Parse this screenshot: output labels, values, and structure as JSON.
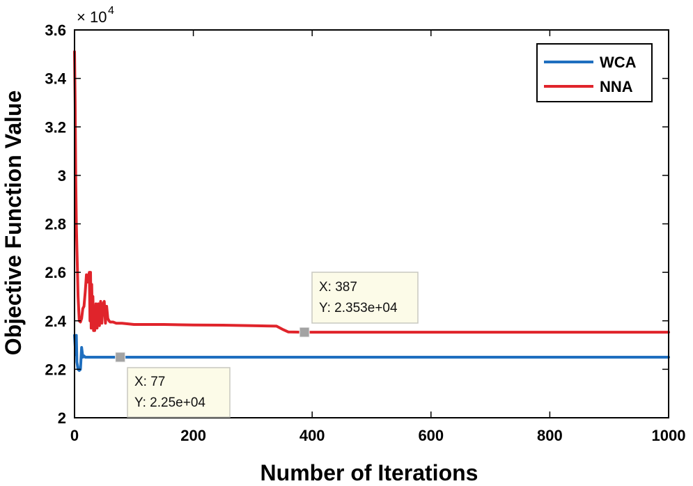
{
  "chart_data": {
    "type": "line",
    "title": "",
    "xlabel": "Number of Iterations",
    "ylabel": "Objective Function Value",
    "y_exponent_label": "× 10",
    "y_exponent_power": "4",
    "xlim": [
      0,
      1000
    ],
    "ylim": [
      20000,
      36000
    ],
    "xticks": [
      0,
      200,
      400,
      600,
      800,
      1000
    ],
    "xtick_labels": [
      "0",
      "200",
      "400",
      "600",
      "800",
      "1000"
    ],
    "yticks": [
      20000,
      22000,
      24000,
      26000,
      28000,
      30000,
      32000,
      34000,
      36000
    ],
    "ytick_labels": [
      "2",
      "2.2",
      "2.4",
      "2.6",
      "2.8",
      "3",
      "3.2",
      "3.4",
      "3.6"
    ],
    "legend_position": "top-right",
    "series": [
      {
        "name": "WCA",
        "color": "#1f6fbf",
        "x": [
          0,
          2,
          3,
          4,
          6,
          8,
          10,
          12,
          14,
          16,
          18,
          20,
          30,
          50,
          77,
          100,
          200,
          400,
          600,
          800,
          1000
        ],
        "y": [
          23400,
          22600,
          23400,
          22300,
          22000,
          21950,
          22000,
          22900,
          22500,
          22550,
          22500,
          22500,
          22500,
          22500,
          22500,
          22500,
          22500,
          22500,
          22500,
          22500,
          22500
        ]
      },
      {
        "name": "NNA",
        "color": "#e0242b",
        "x": [
          0,
          1,
          2,
          3,
          4,
          5,
          6,
          8,
          10,
          12,
          14,
          16,
          18,
          20,
          22,
          24,
          25,
          26,
          27,
          28,
          29,
          30,
          31,
          32,
          33,
          34,
          35,
          36,
          38,
          40,
          42,
          44,
          46,
          48,
          50,
          52,
          54,
          56,
          58,
          60,
          65,
          70,
          80,
          100,
          150,
          200,
          250,
          300,
          340,
          350,
          360,
          387,
          400,
          600,
          800,
          1000
        ],
        "y": [
          35100,
          33000,
          30000,
          28000,
          27000,
          26000,
          25000,
          24000,
          23950,
          24100,
          24500,
          24600,
          25200,
          25900,
          25600,
          25900,
          26000,
          24000,
          26000,
          23700,
          25500,
          24000,
          25000,
          23600,
          24500,
          23600,
          23900,
          24700,
          23700,
          24700,
          23800,
          24800,
          23900,
          24700,
          24800,
          23900,
          24600,
          24100,
          24000,
          23950,
          23950,
          23900,
          23900,
          23850,
          23850,
          23830,
          23820,
          23800,
          23780,
          23650,
          23540,
          23530,
          23530,
          23530,
          23530,
          23530
        ]
      }
    ],
    "datatips": [
      {
        "series": "WCA",
        "x": 77,
        "y": 22500,
        "x_text": "X: 77",
        "y_text": "Y: 2.25e+04"
      },
      {
        "series": "NNA",
        "x": 387,
        "y": 23530,
        "x_text": "X: 387",
        "y_text": "Y: 2.353e+04"
      }
    ]
  }
}
